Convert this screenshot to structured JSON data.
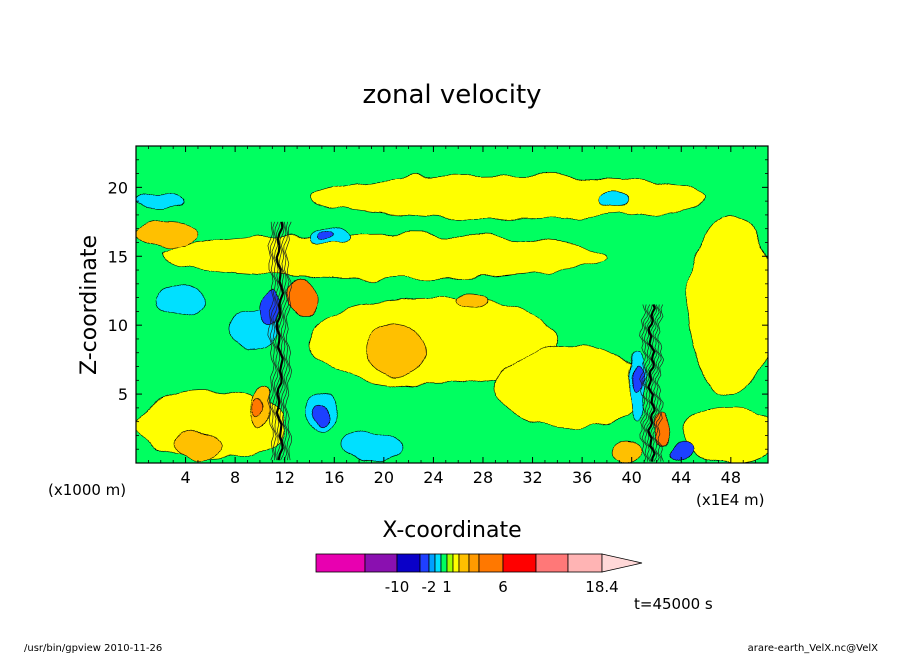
{
  "chart_data": {
    "type": "heatmap",
    "title": "zonal velocity",
    "xlabel": "X-coordinate",
    "ylabel": "Z-coordinate",
    "x_unit": "(x1E4 m)",
    "y_unit": "(x1000 m)",
    "xlim": [
      0,
      51
    ],
    "ylim": [
      0,
      23
    ],
    "x_ticks": [
      4,
      8,
      12,
      16,
      20,
      24,
      28,
      32,
      36,
      40,
      44,
      48
    ],
    "y_ticks": [
      5,
      10,
      15,
      20
    ],
    "background_level": "green",
    "features": [
      {
        "kind": "band",
        "color": "#ffff00",
        "cx": 20,
        "cy": 15.0,
        "rx": 18,
        "ry": 1.6
      },
      {
        "kind": "band",
        "color": "#ffff00",
        "cx": 30,
        "cy": 19.3,
        "rx": 16,
        "ry": 1.6
      },
      {
        "kind": "band",
        "color": "#ffff00",
        "cx": 6,
        "cy": 2.8,
        "rx": 6,
        "ry": 2.5
      },
      {
        "kind": "band",
        "color": "#ffff00",
        "cx": 24,
        "cy": 8.8,
        "rx": 10,
        "ry": 3.2
      },
      {
        "kind": "band",
        "color": "#ffff00",
        "cx": 35,
        "cy": 5.5,
        "rx": 6,
        "ry": 3.0
      },
      {
        "kind": "band",
        "color": "#ffff00",
        "cx": 48,
        "cy": 11.5,
        "rx": 3.5,
        "ry": 6.5
      },
      {
        "kind": "band",
        "color": "#ffff00",
        "cx": 48,
        "cy": 2.0,
        "rx": 4,
        "ry": 2.0
      },
      {
        "kind": "orange",
        "color": "#ffc000",
        "cx": 2.5,
        "cy": 16.5,
        "rx": 2.5,
        "ry": 1.0
      },
      {
        "kind": "orange",
        "color": "#ffc000",
        "cx": 21,
        "cy": 8.2,
        "rx": 2.5,
        "ry": 1.8
      },
      {
        "kind": "orange",
        "color": "#ffc000",
        "cx": 5,
        "cy": 1.2,
        "rx": 2,
        "ry": 1.0
      },
      {
        "kind": "orange",
        "color": "#ffc000",
        "cx": 39.5,
        "cy": 0.9,
        "rx": 1.2,
        "ry": 0.8
      },
      {
        "kind": "orange",
        "color": "#ffc000",
        "cx": 27,
        "cy": 11.7,
        "rx": 1.2,
        "ry": 0.6
      },
      {
        "kind": "orange",
        "color": "#ffc000",
        "cx": 10,
        "cy": 4.0,
        "rx": 0.8,
        "ry": 1.5
      },
      {
        "kind": "cyan",
        "color": "#00e0ff",
        "cx": 2,
        "cy": 19.0,
        "rx": 2,
        "ry": 0.6
      },
      {
        "kind": "cyan",
        "color": "#00e0ff",
        "cx": 3.5,
        "cy": 11.8,
        "rx": 2,
        "ry": 1.2
      },
      {
        "kind": "cyan",
        "color": "#00e0ff",
        "cx": 9.5,
        "cy": 9.8,
        "rx": 2,
        "ry": 1.4
      },
      {
        "kind": "cyan",
        "color": "#00e0ff",
        "cx": 19,
        "cy": 1.2,
        "rx": 2.5,
        "ry": 1.1
      },
      {
        "kind": "cyan",
        "color": "#00e0ff",
        "cx": 38.5,
        "cy": 19.0,
        "rx": 1.2,
        "ry": 0.6
      },
      {
        "kind": "cyan",
        "color": "#00e0ff",
        "cx": 15.5,
        "cy": 16.5,
        "rx": 1.5,
        "ry": 0.7
      },
      {
        "kind": "cyan",
        "color": "#00e0ff",
        "cx": 15,
        "cy": 3.8,
        "rx": 1.2,
        "ry": 1.5
      },
      {
        "kind": "cyan",
        "color": "#00e0ff",
        "cx": 40.5,
        "cy": 5.5,
        "rx": 0.6,
        "ry": 2.5
      },
      {
        "kind": "blue",
        "color": "#1f3fff",
        "cx": 10.8,
        "cy": 11.2,
        "rx": 0.9,
        "ry": 1.2
      },
      {
        "kind": "blue",
        "color": "#1f3fff",
        "cx": 15,
        "cy": 3.5,
        "rx": 0.6,
        "ry": 0.8
      },
      {
        "kind": "blue",
        "color": "#1f3fff",
        "cx": 40.5,
        "cy": 6.0,
        "rx": 0.4,
        "ry": 1.0
      },
      {
        "kind": "blue",
        "color": "#1f3fff",
        "cx": 44,
        "cy": 0.8,
        "rx": 1.0,
        "ry": 0.6
      },
      {
        "kind": "blue",
        "color": "#1f3fff",
        "cx": 15.3,
        "cy": 16.6,
        "rx": 0.6,
        "ry": 0.4
      },
      {
        "kind": "redorange",
        "color": "#ff7800",
        "cx": 13.5,
        "cy": 11.8,
        "rx": 1.2,
        "ry": 1.5
      },
      {
        "kind": "redorange",
        "color": "#ff7800",
        "cx": 9.8,
        "cy": 4.0,
        "rx": 0.5,
        "ry": 0.8
      },
      {
        "kind": "redorange",
        "color": "#ff7800",
        "cx": 42.5,
        "cy": 2.5,
        "rx": 0.6,
        "ry": 1.2
      }
    ],
    "colorbar": {
      "colors": [
        "#e800b0",
        "#8a10b0",
        "#0a00c8",
        "#1f3fff",
        "#00a0ff",
        "#00e0ff",
        "#00ff60",
        "#a0ff00",
        "#ffff00",
        "#ffc000",
        "#ff9a00",
        "#ff7800",
        "#ff0000",
        "#ff7878",
        "#ffb4b4"
      ],
      "labels": [
        "-10",
        "-2",
        "1",
        "6",
        "18.4"
      ]
    },
    "time_label": "t=45000 s"
  },
  "footer": {
    "left": "/usr/bin/gpview  2010-11-26",
    "right": "arare-earth_VelX.nc@VelX"
  }
}
